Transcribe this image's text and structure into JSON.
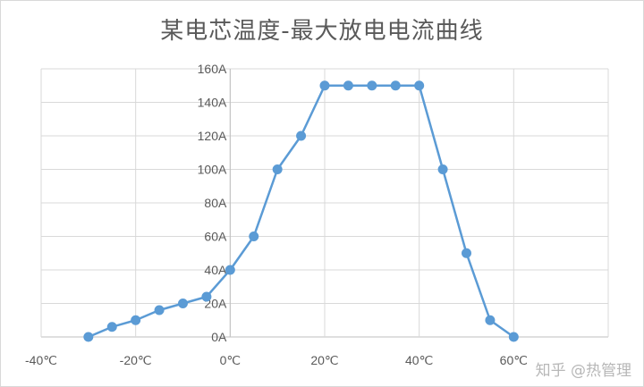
{
  "chart_data": {
    "type": "scatter",
    "title": "某电芯温度-最大放电电流曲线",
    "xlabel": "",
    "ylabel": "",
    "xlim": [
      -40,
      80
    ],
    "ylim": [
      0,
      160
    ],
    "x_ticks": [
      "-40℃",
      "-20℃",
      "0℃",
      "20℃",
      "40℃",
      "60℃",
      ""
    ],
    "y_ticks": [
      "0A",
      "20A",
      "40A",
      "60A",
      "80A",
      "100A",
      "120A",
      "140A",
      "160A"
    ],
    "grid": true,
    "line_color": "#5b9bd5",
    "series": [
      {
        "x": [
          -30,
          -25,
          -20,
          -15,
          -10,
          -5,
          0,
          5,
          10,
          15,
          20,
          25,
          30,
          35,
          40,
          45,
          50,
          55,
          60
        ],
        "y": [
          0,
          6,
          10,
          16,
          20,
          24,
          40,
          60,
          100,
          120,
          150,
          150,
          150,
          150,
          150,
          100,
          50,
          10,
          0
        ]
      }
    ]
  },
  "watermark": "知乎 @热管理"
}
